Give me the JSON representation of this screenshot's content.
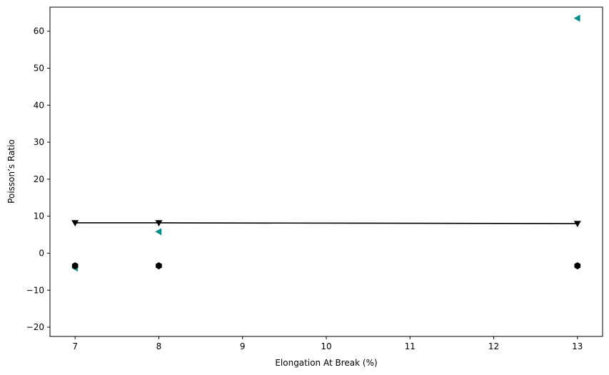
{
  "chart_data": {
    "type": "scatter",
    "xlabel": "Elongation At Break (%)",
    "ylabel": "Poisson’s Ratio",
    "xlim": [
      6.7,
      13.3
    ],
    "ylim": [
      -22.5,
      66.5
    ],
    "xticks": [
      7,
      8,
      9,
      10,
      11,
      12,
      13
    ],
    "yticks": [
      -20,
      -10,
      0,
      10,
      20,
      30,
      40,
      50,
      60
    ],
    "xtick_labels": [
      "7",
      "8",
      "9",
      "10",
      "11",
      "12",
      "13"
    ],
    "ytick_labels": [
      "−20",
      "−10",
      "0",
      "10",
      "20",
      "30",
      "40",
      "50",
      "60"
    ],
    "grid": false,
    "series": [
      {
        "marker": "triangle-left",
        "color": "#008b8b",
        "line": false,
        "x": [
          7,
          8,
          13
        ],
        "y": [
          -4,
          5.8,
          63.5
        ]
      },
      {
        "marker": "hexagon",
        "color": "#000000",
        "line": false,
        "x": [
          7,
          8,
          13
        ],
        "y": [
          -3.4,
          -3.4,
          -3.4
        ]
      },
      {
        "marker": "triangle-down",
        "color": "#000000",
        "line": true,
        "x": [
          7,
          8,
          13
        ],
        "y": [
          8.2,
          8.2,
          8.0
        ]
      }
    ]
  }
}
